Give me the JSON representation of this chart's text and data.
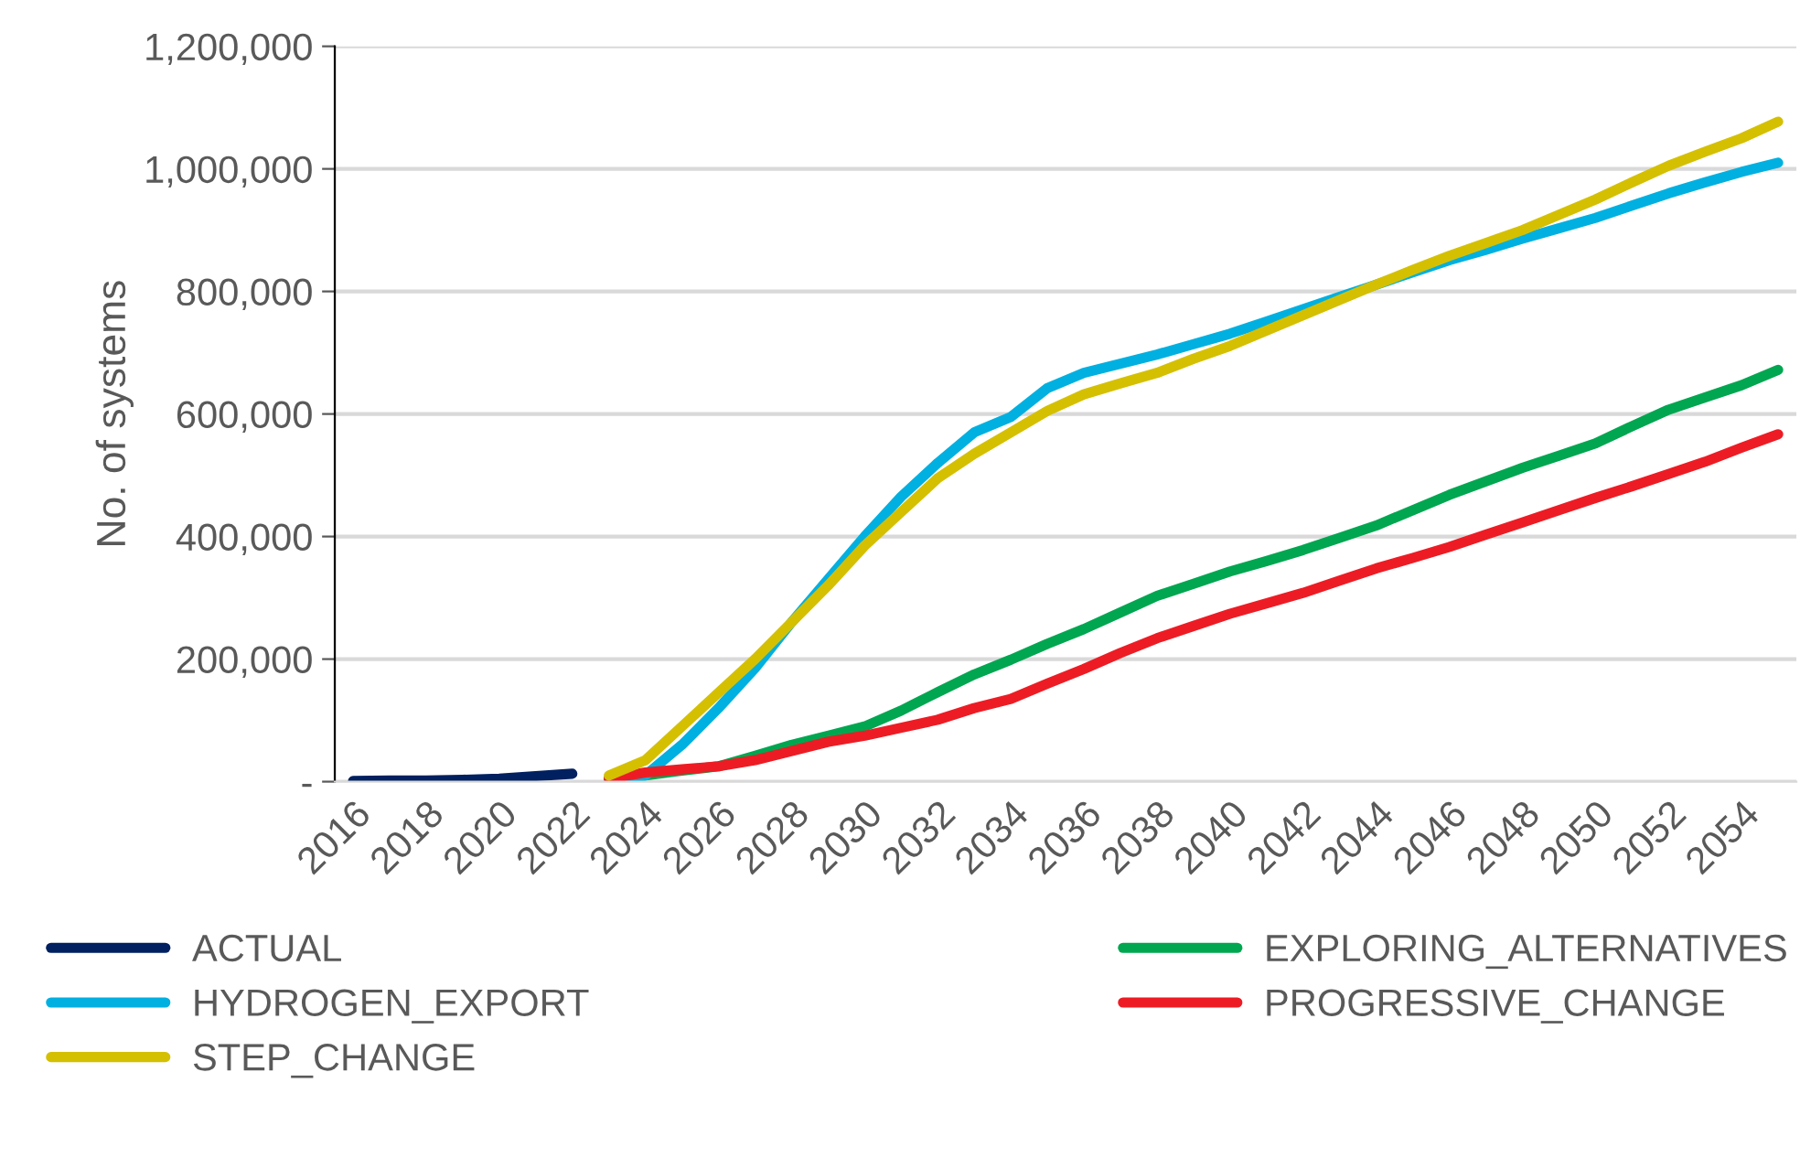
{
  "chart_data": {
    "type": "line",
    "ylabel": "No. of systems",
    "categories": [
      "2016",
      null,
      "2018",
      null,
      "2020",
      null,
      "2022",
      null,
      "2024",
      null,
      "2026",
      null,
      "2028",
      null,
      "2030",
      null,
      "2032",
      null,
      "2034",
      null,
      "2036",
      null,
      "2038",
      null,
      "2040",
      null,
      "2042",
      null,
      "2044",
      null,
      "2046",
      null,
      "2048",
      null,
      "2050",
      null,
      "2052",
      null,
      "2054",
      null
    ],
    "series": [
      {
        "name": "ACTUAL",
        "color": "#002060",
        "values": [
          1000,
          2000,
          2000,
          3000,
          5000,
          9000,
          13000,
          null,
          null,
          null,
          null,
          null,
          null,
          null,
          null,
          null,
          null,
          null,
          null,
          null,
          null,
          null,
          null,
          null,
          null,
          null,
          null,
          null,
          null,
          null,
          null,
          null,
          null,
          null,
          null,
          null,
          null,
          null,
          null,
          null
        ]
      },
      {
        "name": "EXPLORING_ALTERNATIVES",
        "color": "#00a650",
        "values": [
          null,
          null,
          null,
          null,
          null,
          null,
          null,
          5000,
          10000,
          18000,
          25000,
          42000,
          60000,
          75000,
          90000,
          116000,
          146000,
          175000,
          199000,
          225000,
          249000,
          276000,
          303000,
          323000,
          343000,
          360000,
          378000,
          398000,
          418000,
          443000,
          468000,
          490000,
          512000,
          532000,
          552000,
          580000,
          607000,
          627000,
          647000,
          672000
        ]
      },
      {
        "name": "HYDROGEN_EXPORT",
        "color": "#00b0e0",
        "values": [
          null,
          null,
          null,
          null,
          null,
          null,
          null,
          5000,
          10000,
          60000,
          120000,
          185000,
          260000,
          330000,
          400000,
          465000,
          520000,
          570000,
          595000,
          642000,
          667000,
          682000,
          697000,
          714000,
          731000,
          751000,
          771000,
          791000,
          811000,
          831000,
          851000,
          868000,
          886000,
          903000,
          920000,
          940000,
          960000,
          978000,
          995000,
          1010000
        ]
      },
      {
        "name": "PROGRESSIVE_CHANGE",
        "color": "#ed1c24",
        "values": [
          null,
          null,
          null,
          null,
          null,
          null,
          null,
          5000,
          15000,
          20000,
          25000,
          35000,
          50000,
          65000,
          75000,
          88000,
          101000,
          120000,
          135000,
          160000,
          184000,
          210000,
          234000,
          254000,
          274000,
          291000,
          308000,
          328000,
          348000,
          365000,
          383000,
          403000,
          423000,
          443000,
          463000,
          482000,
          502000,
          522000,
          545000,
          567000
        ]
      },
      {
        "name": "STEP_CHANGE",
        "color": "#d4c000",
        "values": [
          null,
          null,
          null,
          null,
          null,
          null,
          null,
          10000,
          35000,
          90000,
          145000,
          200000,
          260000,
          320000,
          385000,
          440000,
          495000,
          535000,
          570000,
          605000,
          632000,
          650000,
          667000,
          690000,
          711000,
          736000,
          761000,
          786000,
          811000,
          835000,
          858000,
          879000,
          900000,
          925000,
          950000,
          978000,
          1005000,
          1028000,
          1050000,
          1077000
        ]
      }
    ],
    "ylim": [
      0,
      1200000
    ],
    "yticks": [
      {
        "value": 0,
        "label": "-"
      },
      {
        "value": 200000,
        "label": "200,000"
      },
      {
        "value": 400000,
        "label": "400,000"
      },
      {
        "value": 600000,
        "label": "600,000"
      },
      {
        "value": 800000,
        "label": "800,000"
      },
      {
        "value": 1000000,
        "label": "1,000,000"
      },
      {
        "value": 1200000,
        "label": "1,200,000"
      }
    ],
    "grid": "y",
    "legend": "bottom",
    "marker": "none",
    "line_style": "solid"
  }
}
